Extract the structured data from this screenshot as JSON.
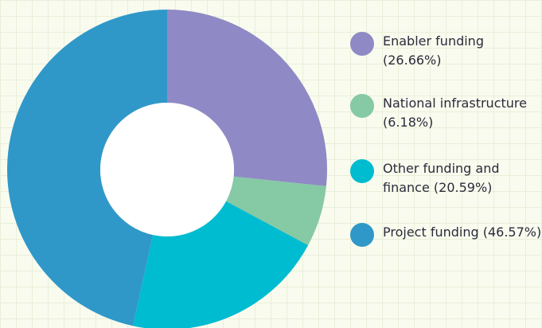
{
  "chart_data": {
    "type": "donut",
    "categories": [
      "Enabler funding",
      "National infrastructure",
      "Other funding and finance",
      "Project funding"
    ],
    "values": [
      26.66,
      6.18,
      20.59,
      46.57
    ],
    "value_labels": [
      "(26.66%)",
      "(6.18%)",
      "(20.59%)",
      "(46.57%)"
    ],
    "colors": [
      "#8f8ac5",
      "#86c9a5",
      "#00bcd0",
      "#2f98c9"
    ],
    "legend": "right"
  }
}
